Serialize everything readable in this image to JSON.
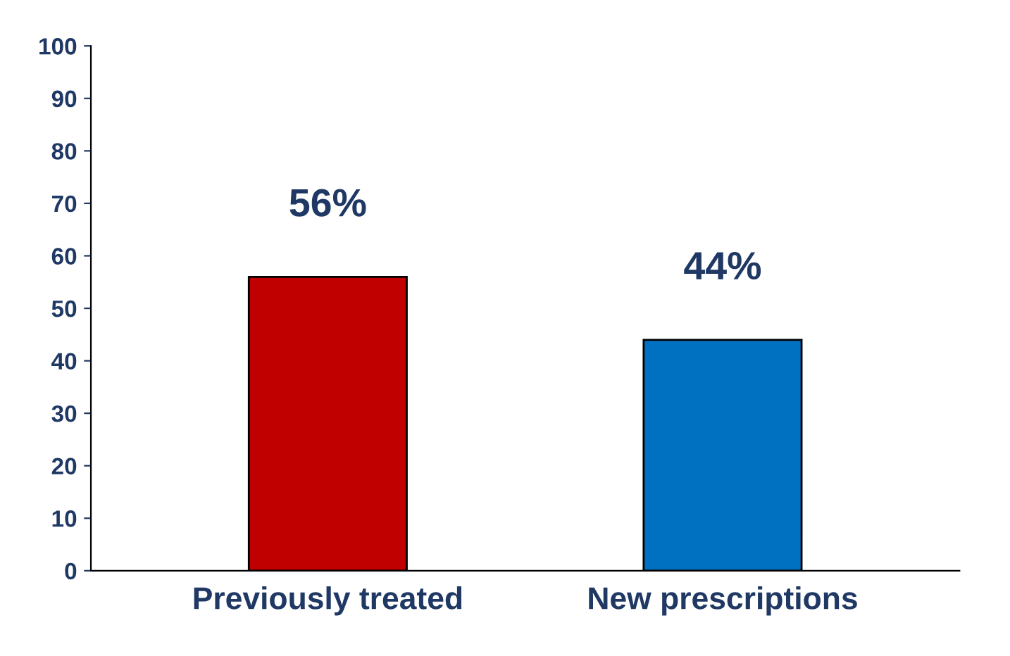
{
  "chart_data": {
    "type": "bar",
    "categories": [
      "Previously treated",
      "New prescriptions"
    ],
    "values": [
      56,
      44
    ],
    "colors": [
      "#c00000",
      "#0070c0"
    ],
    "value_labels": [
      "56%",
      "44%"
    ],
    "ylim": [
      0,
      100
    ],
    "yticks": [
      0,
      10,
      20,
      30,
      40,
      50,
      60,
      70,
      80,
      90,
      100
    ],
    "grid": false,
    "legend": false
  }
}
